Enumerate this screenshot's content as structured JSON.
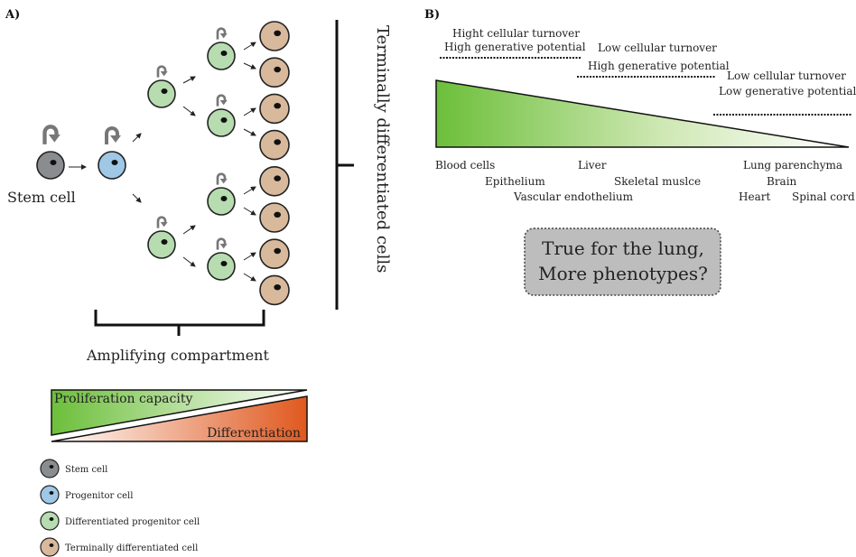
{
  "panel_a": {
    "label": "A)",
    "stem_label": "Stem cell",
    "amplifying_label": "Amplifying compartment",
    "terminal_label": "Terminally differentiated cells",
    "triangle": {
      "top_label": "Proliferation capacity",
      "bottom_label": "Differentiation"
    },
    "legend": [
      {
        "label": "Stem cell",
        "color": "#8a8d90"
      },
      {
        "label": "Progenitor cell",
        "color": "#9fc7e6"
      },
      {
        "label": "Differentiated progenitor cell",
        "color": "#b6dcb0"
      },
      {
        "label": "Terminally differentiated cell",
        "color": "#d9b99c"
      }
    ]
  },
  "panel_b": {
    "label": "B)",
    "annotations": [
      {
        "line1": "Hight cellular turnover",
        "line2": "High generative potential"
      },
      {
        "line1": "Low cellular turnover",
        "line2": "High generative potential"
      },
      {
        "line1": "Low cellular turnover",
        "line2": "Low generative potential"
      }
    ],
    "tissues": {
      "blood": "Blood cells",
      "epithelium": "Epithelium",
      "vascular": "Vascular endothelium",
      "liver": "Liver",
      "skeletal": "Skeletal muslce",
      "lung": "Lung parenchyma",
      "brain": "Brain",
      "heart": "Heart",
      "spinal": "Spinal cord"
    },
    "question_line1": "True for the lung,",
    "question_line2": "More phenotypes?"
  },
  "colors": {
    "stem": "#8a8d90",
    "progenitor": "#9fc7e6",
    "diff_progenitor": "#b6dcb0",
    "terminal": "#d9b99c",
    "green": "#6cbf3a",
    "orange": "#e0581e",
    "question_box": "#bdbdbd"
  }
}
